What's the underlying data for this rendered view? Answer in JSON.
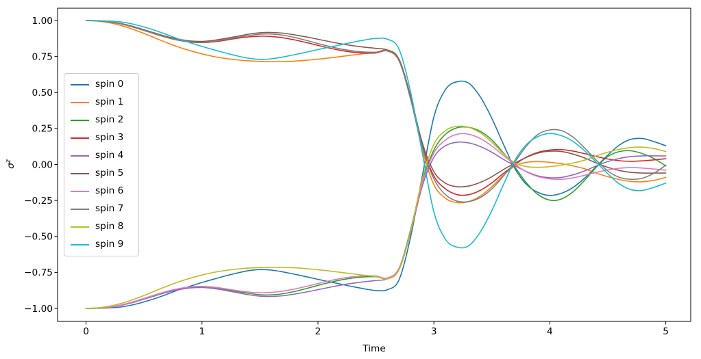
{
  "figure": {
    "background": "#ffffff"
  },
  "axes": {
    "xlabel": "Time",
    "ylabel_base": "σ",
    "ylabel_sup": "z",
    "x_ticks": [
      0,
      1,
      2,
      3,
      4,
      5
    ],
    "x_tick_labels": [
      "0",
      "1",
      "2",
      "3",
      "4",
      "5"
    ],
    "y_ticks": [
      1.0,
      0.75,
      0.5,
      0.25,
      0.0,
      -0.25,
      -0.5,
      -0.75,
      -1.0
    ],
    "y_tick_labels": [
      "1.00",
      "0.75",
      "0.50",
      "0.25",
      "0.00",
      "−0.25",
      "−0.50",
      "−0.75",
      "−1.00"
    ],
    "spine_color": "#000000",
    "grid": false
  },
  "legend": {
    "position": "upper left",
    "edge_color": "#cccccc"
  },
  "chart_data": {
    "type": "line",
    "title": "",
    "xlabel": "Time",
    "ylabel": "σ^z",
    "xlim": [
      -0.25,
      5.25
    ],
    "ylim": [
      -1.09,
      1.09
    ],
    "x": [
      0.0,
      0.1,
      0.2,
      0.3,
      0.4,
      0.5,
      0.6,
      0.7,
      0.8,
      0.9,
      1.0,
      1.1,
      1.2,
      1.3,
      1.4,
      1.5,
      1.6,
      1.7,
      1.8,
      1.9,
      2.0,
      2.1,
      2.2,
      2.3,
      2.4,
      2.5,
      2.6,
      2.7,
      2.8,
      2.9,
      3.0,
      3.1,
      3.2,
      3.3,
      3.4,
      3.5,
      3.6,
      3.7,
      3.8,
      3.9,
      4.0,
      4.1,
      4.2,
      4.3,
      4.4,
      4.5,
      4.6,
      4.7,
      4.8,
      4.9,
      5.0
    ],
    "series": [
      {
        "name": "spin 0",
        "color": "#1f77b4",
        "values": [
          -1.0,
          -0.999,
          -0.996,
          -0.99,
          -0.976,
          -0.955,
          -0.93,
          -0.901,
          -0.871,
          -0.845,
          -0.82,
          -0.797,
          -0.775,
          -0.755,
          -0.738,
          -0.73,
          -0.734,
          -0.747,
          -0.763,
          -0.78,
          -0.798,
          -0.815,
          -0.832,
          -0.849,
          -0.864,
          -0.876,
          -0.87,
          -0.8,
          -0.5,
          -0.08,
          0.33,
          0.52,
          0.575,
          0.565,
          0.47,
          0.32,
          0.14,
          -0.03,
          -0.14,
          -0.195,
          -0.215,
          -0.2,
          -0.16,
          -0.095,
          -0.015,
          0.065,
          0.135,
          0.175,
          0.18,
          0.158,
          0.13
        ]
      },
      {
        "name": "spin 1",
        "color": "#ff7f0e",
        "values": [
          1.0,
          0.996,
          0.985,
          0.966,
          0.94,
          0.91,
          0.877,
          0.845,
          0.815,
          0.79,
          0.768,
          0.75,
          0.737,
          0.727,
          0.72,
          0.716,
          0.714,
          0.715,
          0.718,
          0.724,
          0.731,
          0.74,
          0.75,
          0.76,
          0.77,
          0.778,
          0.795,
          0.73,
          0.46,
          0.1,
          -0.14,
          -0.235,
          -0.265,
          -0.258,
          -0.22,
          -0.155,
          -0.075,
          -0.01,
          0.015,
          0.02,
          0.015,
          0.005,
          -0.01,
          -0.03,
          -0.06,
          -0.085,
          -0.105,
          -0.118,
          -0.12,
          -0.11,
          -0.09
        ]
      },
      {
        "name": "spin 2",
        "color": "#2ca02c",
        "values": [
          -1.0,
          -0.998,
          -0.991,
          -0.977,
          -0.956,
          -0.931,
          -0.906,
          -0.882,
          -0.864,
          -0.852,
          -0.849,
          -0.855,
          -0.868,
          -0.882,
          -0.895,
          -0.905,
          -0.906,
          -0.898,
          -0.882,
          -0.862,
          -0.84,
          -0.82,
          -0.802,
          -0.789,
          -0.781,
          -0.78,
          -0.79,
          -0.72,
          -0.45,
          -0.12,
          0.1,
          0.21,
          0.255,
          0.258,
          0.23,
          0.17,
          0.08,
          -0.02,
          -0.13,
          -0.21,
          -0.248,
          -0.24,
          -0.19,
          -0.11,
          -0.02,
          0.055,
          0.09,
          0.095,
          0.075,
          0.04,
          -0.01
        ]
      },
      {
        "name": "spin 3",
        "color": "#d62728",
        "values": [
          1.0,
          0.998,
          0.991,
          0.977,
          0.956,
          0.931,
          0.905,
          0.881,
          0.862,
          0.85,
          0.847,
          0.852,
          0.863,
          0.876,
          0.886,
          0.891,
          0.889,
          0.88,
          0.865,
          0.847,
          0.827,
          0.808,
          0.792,
          0.78,
          0.774,
          0.775,
          0.788,
          0.72,
          0.46,
          0.13,
          -0.08,
          -0.17,
          -0.21,
          -0.21,
          -0.18,
          -0.128,
          -0.062,
          0.0,
          0.052,
          0.085,
          0.1,
          0.103,
          0.093,
          0.075,
          0.055,
          0.038,
          0.026,
          0.022,
          0.025,
          0.032,
          0.04
        ]
      },
      {
        "name": "spin 4",
        "color": "#9467bd",
        "values": [
          -1.0,
          -0.998,
          -0.992,
          -0.979,
          -0.96,
          -0.936,
          -0.911,
          -0.888,
          -0.87,
          -0.858,
          -0.855,
          -0.862,
          -0.875,
          -0.89,
          -0.905,
          -0.915,
          -0.917,
          -0.912,
          -0.9,
          -0.886,
          -0.87,
          -0.853,
          -0.838,
          -0.825,
          -0.815,
          -0.806,
          -0.795,
          -0.73,
          -0.47,
          -0.15,
          0.05,
          0.13,
          0.155,
          0.15,
          0.125,
          0.085,
          0.035,
          -0.01,
          -0.05,
          -0.08,
          -0.092,
          -0.09,
          -0.072,
          -0.045,
          -0.01,
          0.02,
          0.042,
          0.055,
          0.06,
          0.06,
          0.059
        ]
      },
      {
        "name": "spin 5",
        "color": "#8c564b",
        "values": [
          1.0,
          0.998,
          0.992,
          0.979,
          0.96,
          0.936,
          0.911,
          0.888,
          0.87,
          0.858,
          0.855,
          0.862,
          0.875,
          0.89,
          0.905,
          0.915,
          0.917,
          0.912,
          0.9,
          0.886,
          0.87,
          0.853,
          0.838,
          0.825,
          0.815,
          0.806,
          0.795,
          0.73,
          0.47,
          0.15,
          -0.05,
          -0.13,
          -0.155,
          -0.15,
          -0.125,
          -0.085,
          -0.035,
          0.01,
          0.05,
          0.08,
          0.092,
          0.09,
          0.072,
          0.045,
          0.01,
          -0.02,
          -0.042,
          -0.055,
          -0.06,
          -0.06,
          -0.059
        ]
      },
      {
        "name": "spin 6",
        "color": "#e377c2",
        "values": [
          -1.0,
          -0.998,
          -0.991,
          -0.977,
          -0.956,
          -0.931,
          -0.905,
          -0.881,
          -0.862,
          -0.85,
          -0.847,
          -0.852,
          -0.863,
          -0.876,
          -0.886,
          -0.891,
          -0.889,
          -0.88,
          -0.865,
          -0.847,
          -0.827,
          -0.808,
          -0.792,
          -0.78,
          -0.774,
          -0.775,
          -0.788,
          -0.72,
          -0.46,
          -0.13,
          0.08,
          0.17,
          0.21,
          0.21,
          0.18,
          0.128,
          0.062,
          0.0,
          -0.052,
          -0.085,
          -0.1,
          -0.103,
          -0.093,
          -0.075,
          -0.055,
          -0.038,
          -0.026,
          -0.022,
          -0.025,
          -0.032,
          -0.04
        ]
      },
      {
        "name": "spin 7",
        "color": "#7f7f7f",
        "values": [
          1.0,
          0.998,
          0.991,
          0.977,
          0.956,
          0.931,
          0.906,
          0.882,
          0.864,
          0.852,
          0.849,
          0.855,
          0.868,
          0.882,
          0.895,
          0.905,
          0.906,
          0.898,
          0.882,
          0.862,
          0.84,
          0.82,
          0.802,
          0.789,
          0.781,
          0.78,
          0.79,
          0.72,
          0.45,
          0.12,
          -0.1,
          -0.21,
          -0.255,
          -0.258,
          -0.23,
          -0.17,
          -0.08,
          0.02,
          0.13,
          0.21,
          0.24,
          0.235,
          0.19,
          0.115,
          0.03,
          -0.045,
          -0.09,
          -0.103,
          -0.095,
          -0.06,
          -0.005
        ]
      },
      {
        "name": "spin 8",
        "color": "#bcbd22",
        "values": [
          -1.0,
          -0.996,
          -0.985,
          -0.966,
          -0.94,
          -0.91,
          -0.877,
          -0.845,
          -0.815,
          -0.79,
          -0.768,
          -0.75,
          -0.737,
          -0.727,
          -0.72,
          -0.716,
          -0.714,
          -0.715,
          -0.718,
          -0.724,
          -0.731,
          -0.74,
          -0.75,
          -0.76,
          -0.77,
          -0.778,
          -0.795,
          -0.73,
          -0.46,
          -0.1,
          0.14,
          0.235,
          0.265,
          0.258,
          0.22,
          0.155,
          0.075,
          0.01,
          -0.015,
          -0.02,
          -0.015,
          -0.005,
          0.01,
          0.03,
          0.06,
          0.085,
          0.105,
          0.118,
          0.12,
          0.11,
          0.09
        ]
      },
      {
        "name": "spin 9",
        "color": "#17becf",
        "values": [
          1.0,
          0.999,
          0.996,
          0.99,
          0.976,
          0.955,
          0.93,
          0.901,
          0.871,
          0.845,
          0.82,
          0.797,
          0.775,
          0.755,
          0.738,
          0.73,
          0.734,
          0.747,
          0.763,
          0.78,
          0.798,
          0.815,
          0.832,
          0.849,
          0.864,
          0.876,
          0.87,
          0.8,
          0.5,
          0.08,
          -0.33,
          -0.52,
          -0.575,
          -0.565,
          -0.47,
          -0.32,
          -0.14,
          0.03,
          0.14,
          0.195,
          0.215,
          0.2,
          0.16,
          0.095,
          0.015,
          -0.065,
          -0.135,
          -0.175,
          -0.18,
          -0.158,
          -0.13
        ]
      }
    ]
  }
}
